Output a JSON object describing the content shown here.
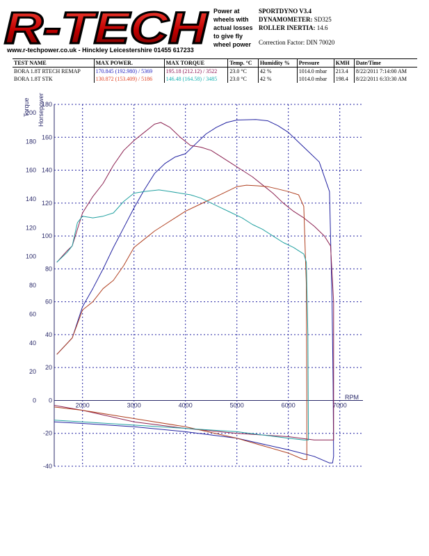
{
  "header": {
    "logo_text": "R-TECH",
    "website": "www.r-techpower.co.uk - Hinckley Leicestershire 01455 617233",
    "tagline": [
      "Power at",
      "wheels with",
      "actual losses",
      "to give fly",
      "wheel power"
    ],
    "software": "SPORTDYNO V3.4",
    "dynamometer_label": "DYNAMOMETER:",
    "dynamometer_value": "SD325",
    "roller_label": "ROLLER INERTIA:",
    "roller_value": "14.6",
    "correction": "Correction Factor: DIN 70020"
  },
  "table": {
    "headers": [
      "TEST NAME",
      "MAX POWER.",
      "MAX TORQUE",
      "Temp. °C",
      "Humidity %",
      "Pressure",
      "KMH",
      "Date/Time"
    ],
    "rows": [
      {
        "name": "BORA 1.8T RTECH REMAP",
        "power": "170.845 (192.980) / 5369",
        "torque": "195.18 (212.12) / 3522",
        "temp": "23.0 °C",
        "humidity": "42 %",
        "pressure": "1014.0 mbar",
        "kmh": "213.4",
        "date": "8/22/2011 7:14:00 AM"
      },
      {
        "name": "BORA 1.8T  STK",
        "power": "130.872 (153.409) / 5186",
        "torque": "146.48 (164.58) / 3485",
        "temp": "23.0 °C",
        "humidity": "42 %",
        "pressure": "1014.0 mbar",
        "kmh": "198.4",
        "date": "8/22/2011 6:33:30 AM"
      }
    ]
  },
  "chart_data": {
    "type": "line",
    "xlabel": "RPM",
    "ylabel_torque": "Torque",
    "ylabel_power": "Horsepower",
    "x_ticks": [
      2000,
      3000,
      4000,
      5000,
      6000,
      7000
    ],
    "torque_ticks": [
      0,
      20,
      40,
      60,
      80,
      100,
      120,
      140,
      160,
      180,
      200
    ],
    "power_ticks": [
      -40,
      -20,
      0,
      20,
      40,
      60,
      80,
      100,
      120,
      140,
      160,
      180
    ],
    "xlim": [
      1450,
      7450
    ],
    "power_lim": [
      -40,
      180
    ],
    "colors": {
      "remap_power": "#2020a0",
      "remap_torque": "#8b2050",
      "stock_power": "#b04020",
      "stock_torque": "#20a0a0",
      "grid": "#2020a0",
      "axis": "#2a2a6a"
    },
    "series": [
      {
        "name": "BORA 1.8T RTECH REMAP power",
        "axis": "power",
        "color": "remap_power",
        "points": [
          [
            1500,
            28
          ],
          [
            1800,
            38
          ],
          [
            2000,
            57
          ],
          [
            2200,
            68
          ],
          [
            2400,
            80
          ],
          [
            2600,
            93
          ],
          [
            2800,
            105
          ],
          [
            3000,
            117
          ],
          [
            3200,
            128
          ],
          [
            3400,
            138
          ],
          [
            3600,
            144
          ],
          [
            3800,
            148
          ],
          [
            4000,
            150
          ],
          [
            4200,
            156
          ],
          [
            4400,
            162
          ],
          [
            4600,
            166
          ],
          [
            4800,
            169
          ],
          [
            5000,
            170.5
          ],
          [
            5369,
            170.8
          ],
          [
            5600,
            170
          ],
          [
            5800,
            167
          ],
          [
            6000,
            163
          ],
          [
            6200,
            157
          ],
          [
            6400,
            151
          ],
          [
            6600,
            145
          ],
          [
            6800,
            127
          ],
          [
            6850,
            60
          ],
          [
            6870,
            10
          ],
          [
            6880,
            -34
          ],
          [
            6860,
            -38
          ],
          [
            6800,
            -38
          ],
          [
            6500,
            -34
          ],
          [
            6000,
            -30
          ],
          [
            5000,
            -23
          ],
          [
            4000,
            -19
          ],
          [
            3000,
            -16
          ],
          [
            2000,
            -14
          ],
          [
            1450,
            -13
          ]
        ]
      },
      {
        "name": "BORA 1.8T RTECH REMAP torque",
        "axis": "power",
        "color": "remap_torque",
        "points": [
          [
            1500,
            84
          ],
          [
            1700,
            91
          ],
          [
            1800,
            94
          ],
          [
            1900,
            104
          ],
          [
            2000,
            114
          ],
          [
            2200,
            124
          ],
          [
            2400,
            132
          ],
          [
            2600,
            143
          ],
          [
            2800,
            152
          ],
          [
            3000,
            158
          ],
          [
            3200,
            163
          ],
          [
            3400,
            168
          ],
          [
            3522,
            169
          ],
          [
            3700,
            166
          ],
          [
            3900,
            160
          ],
          [
            4100,
            155
          ],
          [
            4300,
            154
          ],
          [
            4500,
            152
          ],
          [
            4700,
            148
          ],
          [
            4900,
            144
          ],
          [
            5100,
            140
          ],
          [
            5300,
            136
          ],
          [
            5500,
            131
          ],
          [
            5700,
            126
          ],
          [
            5900,
            120
          ],
          [
            6100,
            115
          ],
          [
            6300,
            111
          ],
          [
            6500,
            106
          ],
          [
            6700,
            100
          ],
          [
            6820,
            94
          ],
          [
            6880,
            60
          ],
          [
            6880,
            -24
          ],
          [
            6850,
            -24
          ],
          [
            6500,
            -24
          ],
          [
            6000,
            -22
          ],
          [
            5000,
            -20
          ],
          [
            4000,
            -17
          ],
          [
            3000,
            -13
          ],
          [
            2000,
            -6
          ],
          [
            1450,
            -3
          ]
        ]
      },
      {
        "name": "BORA 1.8T  STK power",
        "axis": "power",
        "color": "stock_power",
        "points": [
          [
            1500,
            28
          ],
          [
            1800,
            38
          ],
          [
            2000,
            55
          ],
          [
            2200,
            60
          ],
          [
            2400,
            68
          ],
          [
            2600,
            73
          ],
          [
            2800,
            82
          ],
          [
            3000,
            93
          ],
          [
            3200,
            98
          ],
          [
            3400,
            103
          ],
          [
            3600,
            107
          ],
          [
            3800,
            111
          ],
          [
            4000,
            115
          ],
          [
            4200,
            118
          ],
          [
            4400,
            121
          ],
          [
            4600,
            124
          ],
          [
            4800,
            127
          ],
          [
            5000,
            130
          ],
          [
            5186,
            130.9
          ],
          [
            5400,
            130.5
          ],
          [
            5600,
            130
          ],
          [
            5800,
            128.5
          ],
          [
            6000,
            127
          ],
          [
            6200,
            125
          ],
          [
            6300,
            118
          ],
          [
            6350,
            70
          ],
          [
            6360,
            0
          ],
          [
            6360,
            -36
          ],
          [
            6300,
            -36
          ],
          [
            6000,
            -32
          ],
          [
            5000,
            -23
          ],
          [
            4000,
            -16
          ],
          [
            3000,
            -11
          ],
          [
            2000,
            -6
          ],
          [
            1450,
            -4
          ]
        ]
      },
      {
        "name": "BORA 1.8T  STK torque",
        "axis": "power",
        "color": "stock_torque",
        "points": [
          [
            1500,
            84
          ],
          [
            1700,
            90
          ],
          [
            1800,
            94
          ],
          [
            1900,
            108
          ],
          [
            2000,
            112
          ],
          [
            2200,
            111
          ],
          [
            2400,
            112
          ],
          [
            2600,
            114
          ],
          [
            2800,
            121
          ],
          [
            3000,
            126
          ],
          [
            3200,
            127
          ],
          [
            3485,
            128
          ],
          [
            3700,
            127
          ],
          [
            3900,
            126
          ],
          [
            4100,
            125
          ],
          [
            4300,
            123
          ],
          [
            4500,
            120
          ],
          [
            4700,
            117
          ],
          [
            4900,
            114
          ],
          [
            5100,
            111
          ],
          [
            5300,
            107
          ],
          [
            5500,
            104
          ],
          [
            5700,
            100
          ],
          [
            5900,
            96
          ],
          [
            6100,
            93
          ],
          [
            6300,
            89
          ],
          [
            6350,
            84
          ],
          [
            6380,
            40
          ],
          [
            6390,
            -24
          ],
          [
            6300,
            -24
          ],
          [
            6000,
            -23
          ],
          [
            5000,
            -19
          ],
          [
            4000,
            -17
          ],
          [
            3000,
            -15
          ],
          [
            2000,
            -13
          ],
          [
            1450,
            -12
          ]
        ]
      }
    ]
  }
}
